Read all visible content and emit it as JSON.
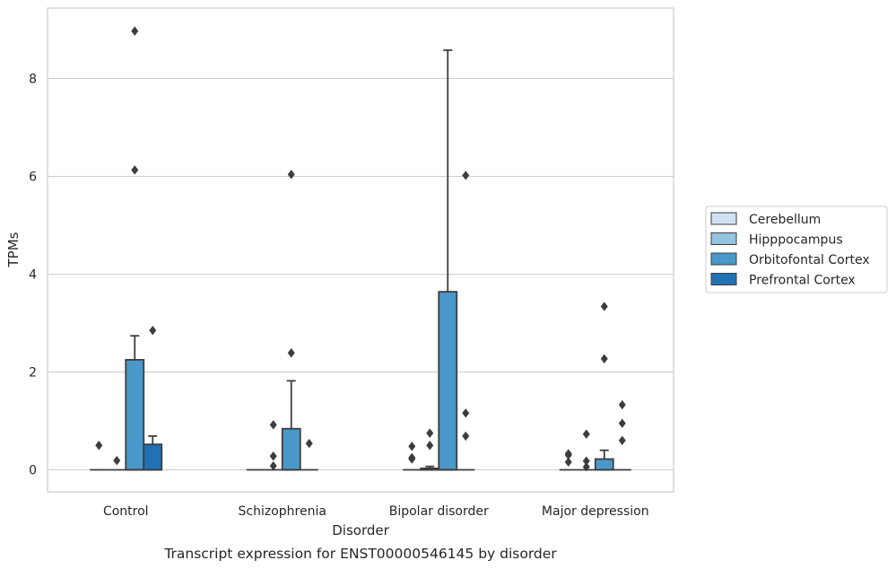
{
  "chart_data": {
    "type": "boxplot",
    "caption": "Transcript expression for ENST00000546145 by disorder",
    "xlabel": "Disorder",
    "ylabel": "TPMs",
    "categories": [
      "Control",
      "Schizophrenia",
      "Bipolar disorder",
      "Major depression"
    ],
    "yticks": [
      "0",
      "2",
      "4",
      "6",
      "8"
    ],
    "ylim": [
      -0.45,
      9.55
    ],
    "grid": "horizontal",
    "legend_position": "right",
    "series": [
      {
        "name": "Cerebellum",
        "color": "#d0e1f2",
        "boxes": [
          {
            "q1": 0,
            "median": 0,
            "q3": 0,
            "whisker_low": 0,
            "whisker_high": 0,
            "outliers": [
              0.5
            ]
          },
          {
            "q1": 0,
            "median": 0,
            "q3": 0,
            "whisker_low": 0,
            "whisker_high": 0,
            "outliers": []
          },
          {
            "q1": 0,
            "median": 0,
            "q3": 0,
            "whisker_low": 0,
            "whisker_high": 0,
            "outliers": [
              0.22,
              0.25,
              0.48
            ]
          },
          {
            "q1": 0,
            "median": 0,
            "q3": 0,
            "whisker_low": 0,
            "whisker_high": 0,
            "outliers": [
              0.16,
              0.3,
              0.33
            ]
          }
        ]
      },
      {
        "name": "Hipppocampus",
        "color": "#94c4df",
        "boxes": [
          {
            "q1": 0,
            "median": 0,
            "q3": 0,
            "whisker_low": 0,
            "whisker_high": 0,
            "outliers": [
              0.19
            ]
          },
          {
            "q1": 0,
            "median": 0,
            "q3": 0,
            "whisker_low": 0,
            "whisker_high": 0,
            "outliers": [
              0.08,
              0.28,
              0.92
            ]
          },
          {
            "q1": 0,
            "median": 0,
            "q3": 0.03,
            "whisker_low": 0,
            "whisker_high": 0.07,
            "outliers": [
              0.5,
              0.75
            ]
          },
          {
            "q1": 0,
            "median": 0,
            "q3": 0,
            "whisker_low": 0,
            "whisker_high": 0,
            "outliers": [
              0.06,
              0.18,
              0.73
            ]
          }
        ]
      },
      {
        "name": "Orbitofontal Cortex",
        "color": "#4a98c9",
        "boxes": [
          {
            "q1": 0,
            "median": 0,
            "q3": 2.25,
            "whisker_low": 0,
            "whisker_high": 2.74,
            "outliers": [
              6.13,
              8.97
            ]
          },
          {
            "q1": 0,
            "median": 0,
            "q3": 0.84,
            "whisker_low": 0,
            "whisker_high": 1.82,
            "outliers": [
              2.39,
              6.04
            ]
          },
          {
            "q1": 0,
            "median": 0,
            "q3": 3.64,
            "whisker_low": 0,
            "whisker_high": 8.58,
            "outliers": []
          },
          {
            "q1": 0,
            "median": 0,
            "q3": 0.22,
            "whisker_low": 0,
            "whisker_high": 0.4,
            "outliers": [
              2.27,
              3.34
            ]
          }
        ]
      },
      {
        "name": "Prefrontal Cortex",
        "color": "#2171b5",
        "boxes": [
          {
            "q1": 0,
            "median": 0,
            "q3": 0.52,
            "whisker_low": 0,
            "whisker_high": 0.69,
            "outliers": [
              2.85
            ]
          },
          {
            "q1": 0,
            "median": 0,
            "q3": 0,
            "whisker_low": 0,
            "whisker_high": 0,
            "outliers": [
              0.54
            ]
          },
          {
            "q1": 0,
            "median": 0,
            "q3": 0,
            "whisker_low": 0,
            "whisker_high": 0,
            "outliers": [
              0.69,
              1.16,
              6.02
            ]
          },
          {
            "q1": 0,
            "median": 0,
            "q3": 0,
            "whisker_low": 0,
            "whisker_high": 0,
            "outliers": [
              0.6,
              0.95,
              1.33
            ]
          }
        ]
      }
    ]
  }
}
